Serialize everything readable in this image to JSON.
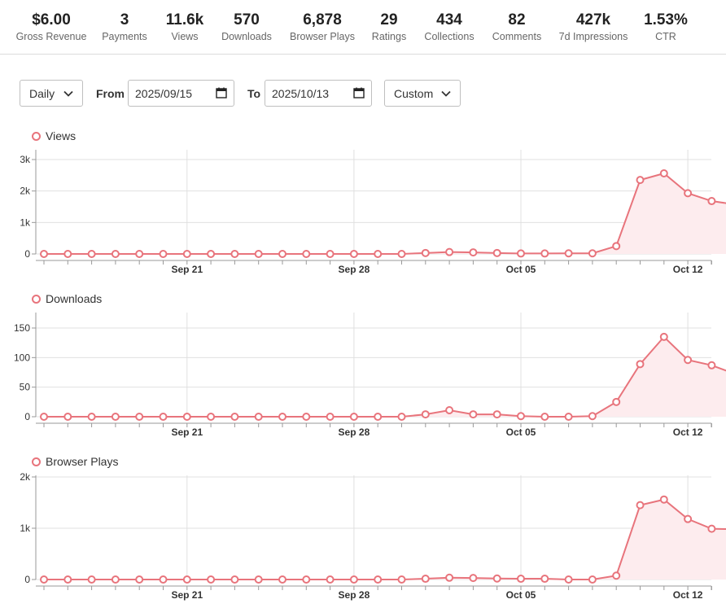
{
  "stats": [
    {
      "value": "$6.00",
      "label": "Gross Revenue"
    },
    {
      "value": "3",
      "label": "Payments"
    },
    {
      "value": "11.6k",
      "label": "Views"
    },
    {
      "value": "570",
      "label": "Downloads"
    },
    {
      "value": "6,878",
      "label": "Browser Plays"
    },
    {
      "value": "29",
      "label": "Ratings"
    },
    {
      "value": "434",
      "label": "Collections"
    },
    {
      "value": "82",
      "label": "Comments"
    },
    {
      "value": "427k",
      "label": "7d Impressions"
    },
    {
      "value": "1.53%",
      "label": "CTR"
    }
  ],
  "filters": {
    "interval": "Daily",
    "from_label": "From",
    "from_date": "2025/09/15",
    "to_label": "To",
    "to_date": "2025/10/13",
    "range": "Custom"
  },
  "colors": {
    "accent": "#e8747c",
    "fill": "#fdecee",
    "grid": "#e0e0e0"
  },
  "chart_data": [
    {
      "type": "area",
      "title": "Views",
      "x_ticks": [
        "Sep 21",
        "Sep 28",
        "Oct 05",
        "Oct 12"
      ],
      "x_tick_index": [
        6,
        13,
        20,
        27
      ],
      "y_ticks": [
        "0",
        "1k",
        "2k",
        "3k"
      ],
      "y_tick_values": [
        0,
        1000,
        2000,
        3000
      ],
      "ylim": [
        0,
        3000
      ],
      "values": [
        0,
        0,
        0,
        0,
        0,
        0,
        0,
        0,
        0,
        0,
        0,
        0,
        0,
        0,
        0,
        0,
        30,
        60,
        50,
        30,
        15,
        15,
        20,
        20,
        250,
        2350,
        2560,
        1930,
        1680,
        1570
      ]
    },
    {
      "type": "area",
      "title": "Downloads",
      "x_ticks": [
        "Sep 21",
        "Sep 28",
        "Oct 05",
        "Oct 12"
      ],
      "x_tick_index": [
        6,
        13,
        20,
        27
      ],
      "y_ticks": [
        "0",
        "50",
        "100",
        "150"
      ],
      "y_tick_values": [
        0,
        50,
        100,
        150
      ],
      "ylim": [
        0,
        150
      ],
      "values": [
        0,
        0,
        0,
        0,
        0,
        0,
        0,
        0,
        0,
        0,
        0,
        0,
        0,
        0,
        0,
        0,
        4,
        11,
        4,
        4,
        1,
        0,
        0,
        1,
        25,
        89,
        135,
        96,
        87,
        72
      ]
    },
    {
      "type": "area",
      "title": "Browser Plays",
      "x_ticks": [
        "Sep 21",
        "Sep 28",
        "Oct 05",
        "Oct 12"
      ],
      "x_tick_index": [
        6,
        13,
        20,
        27
      ],
      "y_ticks": [
        "0",
        "1k",
        "2k"
      ],
      "y_tick_values": [
        0,
        1000,
        2000
      ],
      "ylim": [
        0,
        2000
      ],
      "values": [
        0,
        0,
        0,
        0,
        0,
        0,
        0,
        0,
        0,
        0,
        0,
        0,
        0,
        0,
        0,
        0,
        15,
        35,
        30,
        20,
        15,
        15,
        0,
        0,
        75,
        1450,
        1560,
        1180,
        990,
        980
      ]
    }
  ]
}
